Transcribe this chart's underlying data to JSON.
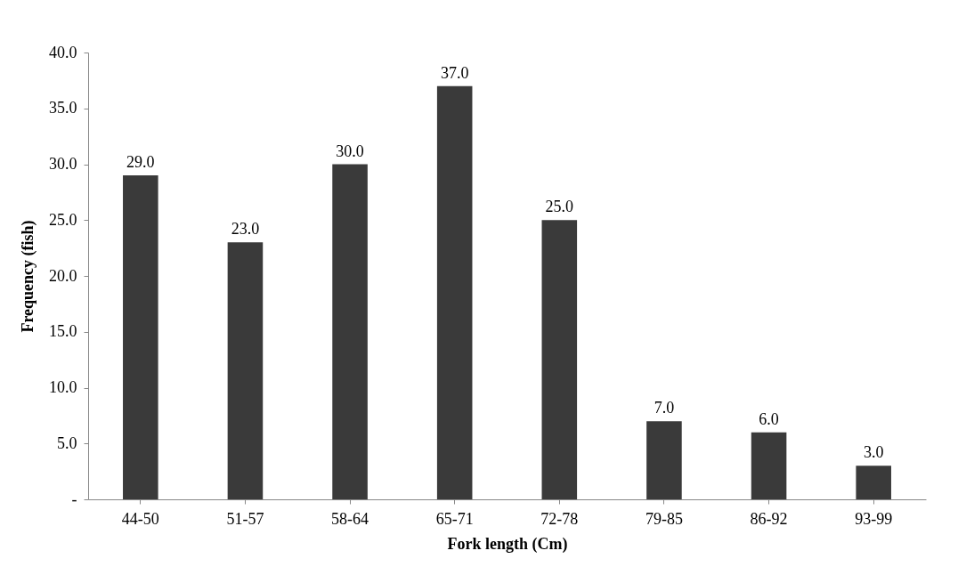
{
  "chart_data": {
    "type": "bar",
    "xlabel": "Fork length (Cm)",
    "ylabel": "Frequency (fish)",
    "categories": [
      "44-50",
      "51-57",
      "58-64",
      "65-71",
      "72-78",
      "79-85",
      "86-92",
      "93-99"
    ],
    "values": [
      29,
      23,
      30,
      37,
      25,
      7,
      6,
      3
    ],
    "value_labels": [
      "29.0",
      "23.0",
      "30.0",
      "37.0",
      "25.0",
      "7.0",
      "6.0",
      "3.0"
    ],
    "color": "#3a3a3a",
    "ylim": [
      0,
      40
    ],
    "yticks": [
      {
        "value": 0,
        "label": "-"
      },
      {
        "value": 5,
        "label": "5.0"
      },
      {
        "value": 10,
        "label": "10.0"
      },
      {
        "value": 15,
        "label": "15.0"
      },
      {
        "value": 20,
        "label": "20.0"
      },
      {
        "value": 25,
        "label": "25.0"
      },
      {
        "value": 30,
        "label": "30.0"
      },
      {
        "value": 35,
        "label": "35.0"
      },
      {
        "value": 40,
        "label": "40.0"
      }
    ],
    "grid": false
  }
}
